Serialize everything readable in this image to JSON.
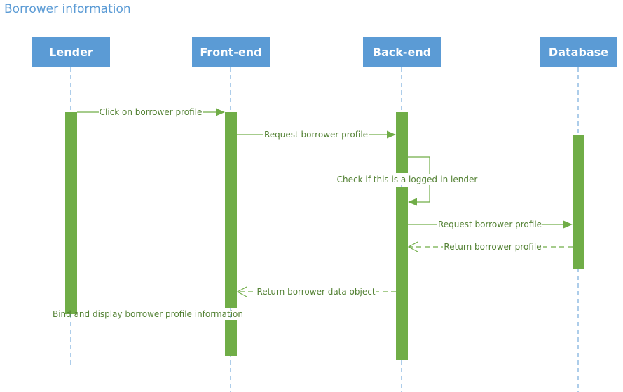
{
  "title": "Borrower information",
  "actors": [
    {
      "id": "lender",
      "label": "Lender"
    },
    {
      "id": "frontend",
      "label": "Front-end"
    },
    {
      "id": "backend",
      "label": "Back-end"
    },
    {
      "id": "database",
      "label": "Database"
    }
  ],
  "messages": [
    {
      "id": "m1",
      "label": "Click on borrower profile",
      "from": "lender",
      "to": "frontend",
      "style": "solid"
    },
    {
      "id": "m2",
      "label": "Request borrower profile",
      "from": "frontend",
      "to": "backend",
      "style": "solid"
    },
    {
      "id": "m3",
      "label": "Check if this is a logged-in lender",
      "from": "backend",
      "to": "backend",
      "style": "self"
    },
    {
      "id": "m4",
      "label": "Request borrower profile",
      "from": "backend",
      "to": "database",
      "style": "solid"
    },
    {
      "id": "m5",
      "label": "Return borrower profile",
      "from": "database",
      "to": "backend",
      "style": "dashed"
    },
    {
      "id": "m6",
      "label": "Return borrower data object",
      "from": "backend",
      "to": "frontend",
      "style": "dashed"
    },
    {
      "id": "m7",
      "label": "Bind and display borrower profile information",
      "from": "frontend",
      "to": "lender",
      "style": "note"
    }
  ],
  "colors": {
    "actor": "#5b9bd5",
    "activation": "#70ad47",
    "message": "#70ad47",
    "label": "#548235",
    "title": "#5b9bd5"
  }
}
